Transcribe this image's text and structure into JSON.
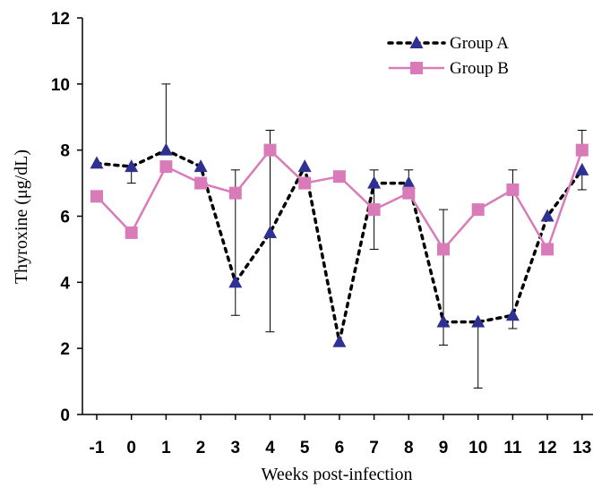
{
  "chart_data": {
    "type": "line",
    "title": "",
    "xlabel": "Weeks post-infection",
    "ylabel": "Thyroxine (μg/dL)",
    "ylim": [
      0,
      12
    ],
    "yticks": [
      0,
      2,
      4,
      6,
      8,
      10,
      12
    ],
    "grid": false,
    "legend_position": "top-right",
    "categories": [
      "-1",
      "0",
      "1",
      "2",
      "3",
      "4",
      "5",
      "6",
      "7",
      "8",
      "9",
      "10",
      "11",
      "12",
      "13"
    ],
    "series": [
      {
        "name": "Group A",
        "color": "#2e3192",
        "line_style": "dotted",
        "marker": "triangle",
        "values": [
          7.6,
          7.5,
          8.0,
          7.5,
          4.0,
          5.5,
          7.5,
          2.2,
          7.0,
          7.0,
          2.8,
          2.8,
          3.0,
          6.0,
          7.4
        ],
        "error_high": [
          null,
          null,
          10.0,
          null,
          7.4,
          8.6,
          null,
          null,
          7.4,
          7.4,
          6.2,
          null,
          7.4,
          null,
          null
        ],
        "error_low": [
          null,
          7.0,
          null,
          null,
          3.0,
          2.5,
          null,
          null,
          5.0,
          null,
          2.1,
          0.8,
          2.6,
          null,
          6.8
        ]
      },
      {
        "name": "Group B",
        "color": "#d97bb9",
        "line_style": "solid",
        "marker": "square",
        "values": [
          6.6,
          5.5,
          7.5,
          7.0,
          6.7,
          8.0,
          7.0,
          7.2,
          6.2,
          6.7,
          5.0,
          6.2,
          6.8,
          5.0,
          8.0
        ],
        "error_high": [
          null,
          null,
          null,
          null,
          null,
          null,
          null,
          null,
          null,
          null,
          null,
          null,
          null,
          null,
          8.6
        ],
        "error_low": [
          null,
          null,
          null,
          null,
          null,
          null,
          null,
          null,
          null,
          null,
          null,
          null,
          null,
          null,
          null
        ]
      }
    ]
  }
}
